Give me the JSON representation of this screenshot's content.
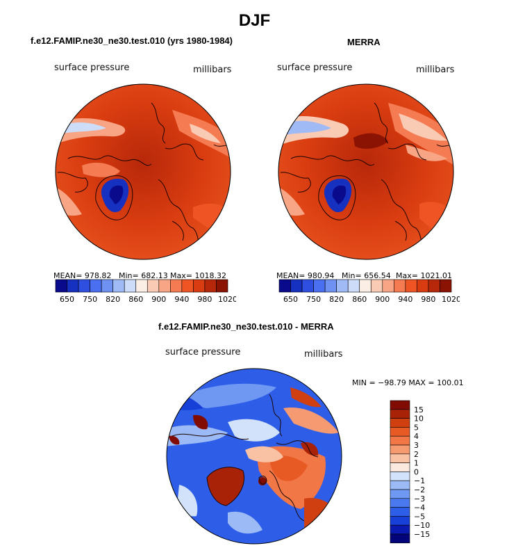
{
  "title": "DJF",
  "palette_seq": [
    "#0a0a8c",
    "#1631c0",
    "#2f4fe0",
    "#4a6ff0",
    "#6f92f2",
    "#9fbaf4",
    "#cddcf8",
    "#fbeee5",
    "#f9cbb5",
    "#f7a584",
    "#f57c52",
    "#ee5424",
    "#d83c10",
    "#b7280a",
    "#8a1304"
  ],
  "palette_diff": [
    "#04047a",
    "#0a1ab0",
    "#1740d8",
    "#2e5ee8",
    "#4a78ee",
    "#6e98f2",
    "#9cbaf5",
    "#d2e2fa",
    "#fbe9df",
    "#f9c2a5",
    "#f69a72",
    "#f27746",
    "#e85a24",
    "#cf3f10",
    "#a82208",
    "#800c04"
  ],
  "chart_data": [
    {
      "type": "heatmap",
      "subtitle": "f.e12.FAMIP.ne30_ne30.test.010 (yrs 1980-1984)",
      "variable": "surface pressure",
      "units": "millibars",
      "stats": {
        "mean_label": "MEAN=",
        "mean": "978.82",
        "min_label": "Min=",
        "min": "682.13",
        "max_label": "Max=",
        "max": "1018.32"
      },
      "colorbar_ticks": [
        "650",
        "750",
        "820",
        "860",
        "900",
        "940",
        "980",
        "1020"
      ]
    },
    {
      "type": "heatmap",
      "subtitle": "MERRA",
      "variable": "surface pressure",
      "units": "millibars",
      "stats": {
        "mean_label": "MEAN=",
        "mean": "980.94",
        "min_label": "Min=",
        "min": "656.54",
        "max_label": "Max=",
        "max": "1021.01"
      },
      "colorbar_ticks": [
        "650",
        "750",
        "820",
        "860",
        "900",
        "940",
        "980",
        "1020"
      ]
    },
    {
      "type": "heatmap",
      "subtitle": "f.e12.FAMIP.ne30_ne30.test.010 - MERRA",
      "variable": "surface pressure",
      "units": "millibars",
      "range_text": "MIN = −98.79 MAX = 100.01",
      "colorbar_ticks": [
        "15",
        "10",
        "5",
        "4",
        "3",
        "2",
        "1",
        "0",
        "−1",
        "−2",
        "−3",
        "−4",
        "−5",
        "−10",
        "−15"
      ]
    }
  ]
}
